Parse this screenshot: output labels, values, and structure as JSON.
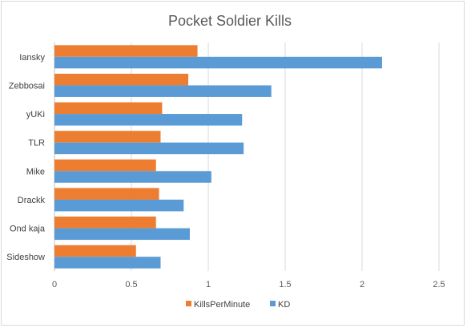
{
  "chart_data": {
    "type": "bar",
    "orientation": "horizontal",
    "title": "Pocket Soldier Kills",
    "categories": [
      "Iansky",
      "Zebbosai",
      "yUKi",
      "TLR",
      "Mike",
      "Drackk",
      "Ond kaja",
      "Sideshow"
    ],
    "series": [
      {
        "name": "KillsPerMinute",
        "color": "#ed7d31",
        "values": [
          0.93,
          0.87,
          0.7,
          0.69,
          0.66,
          0.68,
          0.66,
          0.53
        ]
      },
      {
        "name": "KD",
        "color": "#5b9bd5",
        "values": [
          2.13,
          1.41,
          1.22,
          1.23,
          1.02,
          0.84,
          0.88,
          0.69
        ]
      }
    ],
    "xlim": [
      0,
      2.5
    ],
    "xticks": [
      "0",
      "0.5",
      "1",
      "1.5",
      "2",
      "2.5"
    ],
    "grid": true,
    "legend_position": "bottom"
  }
}
